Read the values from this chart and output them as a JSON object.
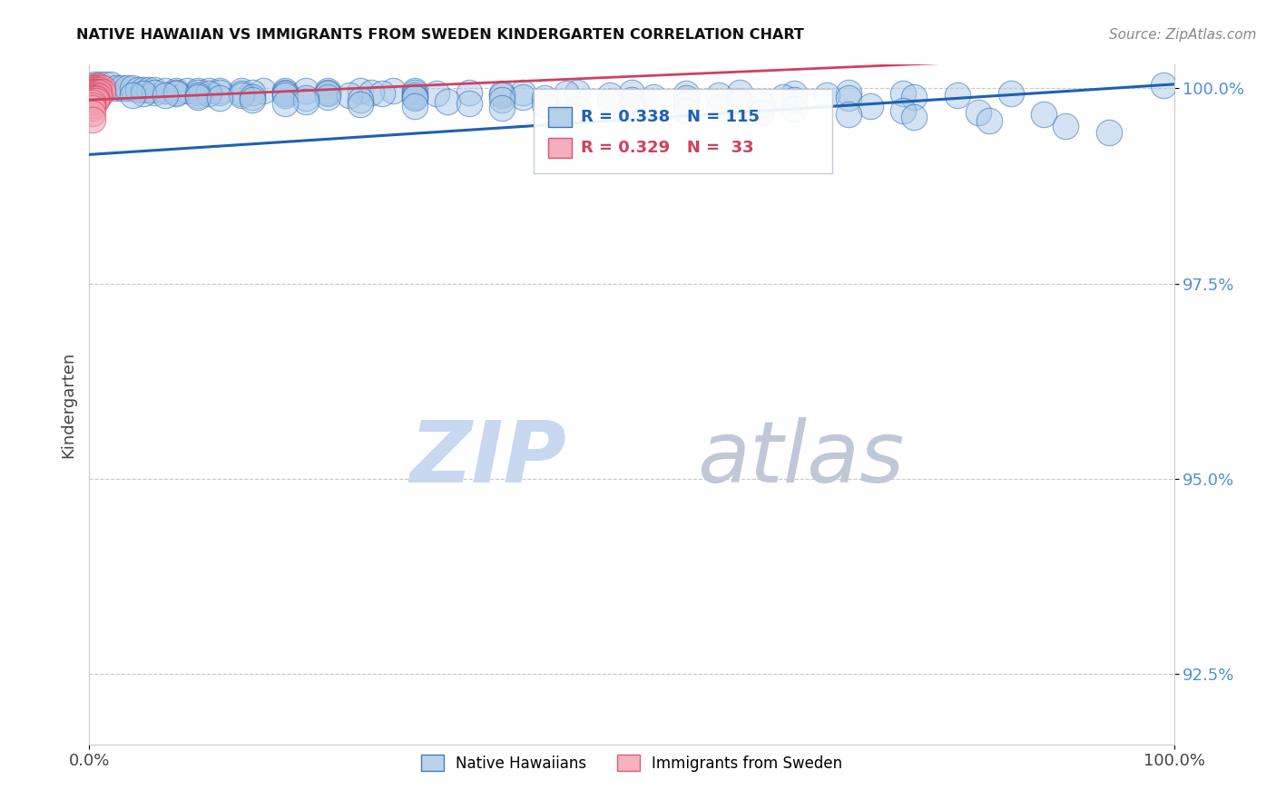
{
  "title": "NATIVE HAWAIIAN VS IMMIGRANTS FROM SWEDEN KINDERGARTEN CORRELATION CHART",
  "source_text": "Source: ZipAtlas.com",
  "ylabel": "Kindergarten",
  "x_min": 0.0,
  "x_max": 1.0,
  "y_min": 0.916,
  "y_max": 1.003,
  "y_ticks": [
    0.925,
    0.95,
    0.975,
    1.0
  ],
  "y_tick_labels": [
    "92.5%",
    "95.0%",
    "97.5%",
    "100.0%"
  ],
  "legend_blue_label": "Native Hawaiians",
  "legend_pink_label": "Immigrants from Sweden",
  "R_blue": 0.338,
  "N_blue": 115,
  "R_pink": 0.329,
  "N_pink": 33,
  "blue_color": "#a8c8e8",
  "pink_color": "#f4a0b0",
  "trendline_blue": "#2060b0",
  "trendline_pink": "#d04060",
  "tick_color": "#5090d0",
  "watermark_zip_color": "#c8d8f0",
  "watermark_atlas_color": "#c0c8d8",
  "background_color": "#ffffff",
  "grid_color": "#c8c8c8",
  "blue_trendline_x": [
    0.0,
    1.0
  ],
  "blue_trendline_y": [
    0.9915,
    1.0005
  ],
  "pink_trendline_x": [
    0.0,
    1.0
  ],
  "pink_trendline_y": [
    0.9985,
    1.0045
  ],
  "blue_scatter": [
    [
      0.005,
      1.0005
    ],
    [
      0.01,
      1.0005
    ],
    [
      0.015,
      1.0005
    ],
    [
      0.02,
      1.0005
    ],
    [
      0.025,
      1.0
    ],
    [
      0.03,
      1.0
    ],
    [
      0.035,
      1.0
    ],
    [
      0.04,
      1.0
    ],
    [
      0.045,
      0.9998
    ],
    [
      0.05,
      0.9998
    ],
    [
      0.055,
      0.9998
    ],
    [
      0.06,
      0.9998
    ],
    [
      0.07,
      0.9997
    ],
    [
      0.08,
      0.9997
    ],
    [
      0.09,
      0.9997
    ],
    [
      0.1,
      0.9997
    ],
    [
      0.11,
      0.9997
    ],
    [
      0.12,
      0.9997
    ],
    [
      0.14,
      0.9997
    ],
    [
      0.16,
      0.9997
    ],
    [
      0.18,
      0.9997
    ],
    [
      0.2,
      0.9997
    ],
    [
      0.22,
      0.9997
    ],
    [
      0.25,
      0.9997
    ],
    [
      0.28,
      0.9997
    ],
    [
      0.3,
      0.9997
    ],
    [
      0.06,
      0.9995
    ],
    [
      0.08,
      0.9995
    ],
    [
      0.1,
      0.9995
    ],
    [
      0.12,
      0.9995
    ],
    [
      0.15,
      0.9995
    ],
    [
      0.18,
      0.9995
    ],
    [
      0.22,
      0.9995
    ],
    [
      0.26,
      0.9995
    ],
    [
      0.3,
      0.9995
    ],
    [
      0.35,
      0.9995
    ],
    [
      0.4,
      0.9995
    ],
    [
      0.45,
      0.9995
    ],
    [
      0.5,
      0.9995
    ],
    [
      0.6,
      0.9995
    ],
    [
      0.7,
      0.9995
    ],
    [
      0.05,
      0.9993
    ],
    [
      0.08,
      0.9993
    ],
    [
      0.11,
      0.9993
    ],
    [
      0.14,
      0.9993
    ],
    [
      0.18,
      0.9993
    ],
    [
      0.22,
      0.9993
    ],
    [
      0.27,
      0.9993
    ],
    [
      0.32,
      0.9993
    ],
    [
      0.38,
      0.9993
    ],
    [
      0.44,
      0.9993
    ],
    [
      0.55,
      0.9993
    ],
    [
      0.65,
      0.9993
    ],
    [
      0.75,
      0.9993
    ],
    [
      0.85,
      0.9993
    ],
    [
      0.04,
      0.9991
    ],
    [
      0.07,
      0.9991
    ],
    [
      0.1,
      0.9991
    ],
    [
      0.14,
      0.9991
    ],
    [
      0.18,
      0.9991
    ],
    [
      0.24,
      0.9991
    ],
    [
      0.3,
      0.9991
    ],
    [
      0.38,
      0.9991
    ],
    [
      0.48,
      0.9991
    ],
    [
      0.58,
      0.9991
    ],
    [
      0.68,
      0.9991
    ],
    [
      0.8,
      0.9991
    ],
    [
      0.1,
      0.9989
    ],
    [
      0.15,
      0.9989
    ],
    [
      0.22,
      0.9989
    ],
    [
      0.3,
      0.9989
    ],
    [
      0.4,
      0.9989
    ],
    [
      0.52,
      0.9989
    ],
    [
      0.64,
      0.9989
    ],
    [
      0.76,
      0.9989
    ],
    [
      0.12,
      0.9987
    ],
    [
      0.2,
      0.9987
    ],
    [
      0.3,
      0.9987
    ],
    [
      0.42,
      0.9987
    ],
    [
      0.55,
      0.9987
    ],
    [
      0.7,
      0.9987
    ],
    [
      0.15,
      0.9985
    ],
    [
      0.25,
      0.9985
    ],
    [
      0.38,
      0.9985
    ],
    [
      0.5,
      0.9985
    ],
    [
      0.65,
      0.9985
    ],
    [
      0.2,
      0.9983
    ],
    [
      0.33,
      0.9983
    ],
    [
      0.48,
      0.9983
    ],
    [
      0.6,
      0.9983
    ],
    [
      0.18,
      0.9981
    ],
    [
      0.35,
      0.9981
    ],
    [
      0.55,
      0.9981
    ],
    [
      0.25,
      0.9979
    ],
    [
      0.42,
      0.9979
    ],
    [
      0.62,
      0.9979
    ],
    [
      0.3,
      0.9977
    ],
    [
      0.5,
      0.9977
    ],
    [
      0.72,
      0.9977
    ],
    [
      0.38,
      0.9975
    ],
    [
      0.58,
      0.9975
    ],
    [
      0.45,
      0.9973
    ],
    [
      0.65,
      0.9973
    ],
    [
      0.55,
      0.9971
    ],
    [
      0.75,
      0.9971
    ],
    [
      0.62,
      0.9969
    ],
    [
      0.82,
      0.9969
    ],
    [
      0.7,
      0.9967
    ],
    [
      0.88,
      0.9967
    ],
    [
      0.76,
      0.9963
    ],
    [
      0.83,
      0.9958
    ],
    [
      0.9,
      0.9952
    ],
    [
      0.94,
      0.9943
    ],
    [
      0.99,
      1.0004
    ]
  ],
  "pink_scatter": [
    [
      0.003,
      1.0002
    ],
    [
      0.006,
      1.0002
    ],
    [
      0.009,
      1.0002
    ],
    [
      0.003,
      1.0
    ],
    [
      0.006,
      1.0
    ],
    [
      0.009,
      1.0
    ],
    [
      0.012,
      1.0
    ],
    [
      0.003,
      0.9998
    ],
    [
      0.006,
      0.9998
    ],
    [
      0.009,
      0.9998
    ],
    [
      0.003,
      0.9996
    ],
    [
      0.006,
      0.9996
    ],
    [
      0.009,
      0.9996
    ],
    [
      0.012,
      0.9996
    ],
    [
      0.003,
      0.9994
    ],
    [
      0.006,
      0.9994
    ],
    [
      0.009,
      0.9994
    ],
    [
      0.003,
      0.9992
    ],
    [
      0.006,
      0.9992
    ],
    [
      0.003,
      0.999
    ],
    [
      0.006,
      0.999
    ],
    [
      0.009,
      0.999
    ],
    [
      0.003,
      0.9988
    ],
    [
      0.006,
      0.9988
    ],
    [
      0.003,
      0.9986
    ],
    [
      0.006,
      0.9986
    ],
    [
      0.003,
      0.9984
    ],
    [
      0.006,
      0.9984
    ],
    [
      0.003,
      0.9982
    ],
    [
      0.003,
      0.9978
    ],
    [
      0.003,
      0.9975
    ],
    [
      0.003,
      0.9968
    ],
    [
      0.003,
      0.996
    ]
  ]
}
